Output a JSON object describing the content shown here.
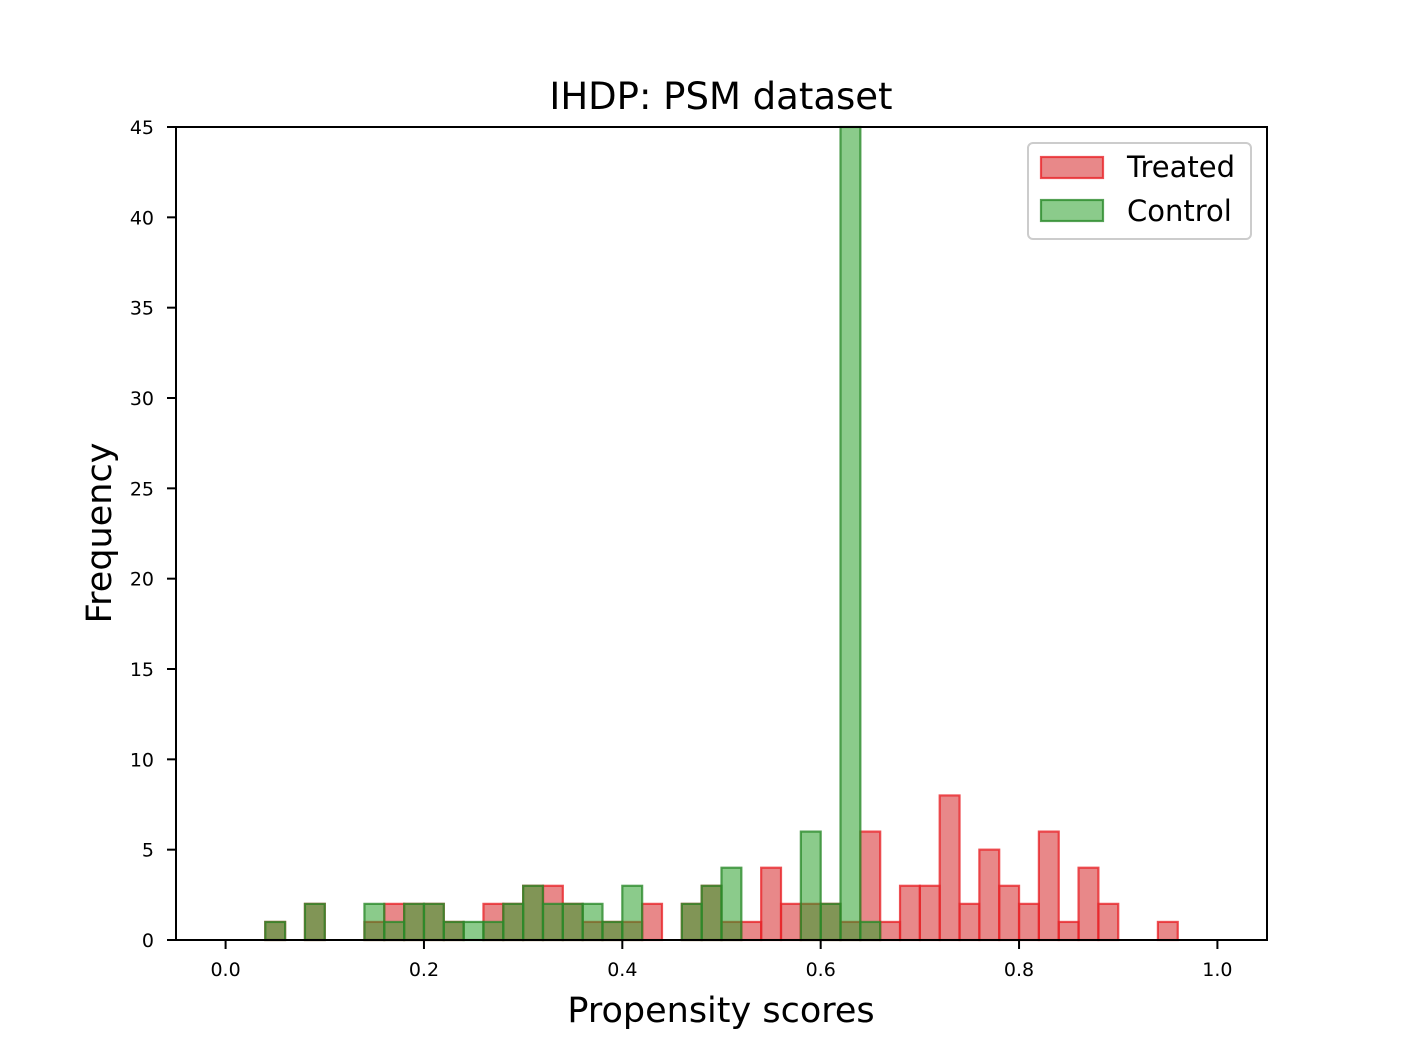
{
  "chart_data": {
    "type": "bar",
    "subtype": "histogram-overlay",
    "title": "IHDP: PSM dataset",
    "xlabel": "Propensity scores",
    "ylabel": "Frequency",
    "xlim": [
      -0.05,
      1.05
    ],
    "ylim": [
      0,
      45
    ],
    "xticks": [
      "0.0",
      "0.2",
      "0.4",
      "0.6",
      "0.8",
      "1.0"
    ],
    "yticks": [
      "0",
      "5",
      "10",
      "15",
      "20",
      "25",
      "30",
      "35",
      "40",
      "45"
    ],
    "bin_width": 0.02,
    "legend_position": "top-right",
    "series": [
      {
        "name": "Treated",
        "fill": "#d62728",
        "edge": "#e8262b",
        "bins": [
          {
            "x": 0.04,
            "count": 1
          },
          {
            "x": 0.08,
            "count": 2
          },
          {
            "x": 0.14,
            "count": 1
          },
          {
            "x": 0.16,
            "count": 2
          },
          {
            "x": 0.18,
            "count": 2
          },
          {
            "x": 0.2,
            "count": 2
          },
          {
            "x": 0.22,
            "count": 1
          },
          {
            "x": 0.26,
            "count": 2
          },
          {
            "x": 0.28,
            "count": 2
          },
          {
            "x": 0.3,
            "count": 3
          },
          {
            "x": 0.32,
            "count": 3
          },
          {
            "x": 0.34,
            "count": 2
          },
          {
            "x": 0.36,
            "count": 1
          },
          {
            "x": 0.38,
            "count": 1
          },
          {
            "x": 0.4,
            "count": 1
          },
          {
            "x": 0.42,
            "count": 2
          },
          {
            "x": 0.46,
            "count": 2
          },
          {
            "x": 0.48,
            "count": 3
          },
          {
            "x": 0.5,
            "count": 1
          },
          {
            "x": 0.52,
            "count": 1
          },
          {
            "x": 0.54,
            "count": 4
          },
          {
            "x": 0.56,
            "count": 2
          },
          {
            "x": 0.58,
            "count": 2
          },
          {
            "x": 0.6,
            "count": 2
          },
          {
            "x": 0.62,
            "count": 1
          },
          {
            "x": 0.64,
            "count": 6
          },
          {
            "x": 0.66,
            "count": 1
          },
          {
            "x": 0.68,
            "count": 3
          },
          {
            "x": 0.7,
            "count": 3
          },
          {
            "x": 0.72,
            "count": 8
          },
          {
            "x": 0.74,
            "count": 2
          },
          {
            "x": 0.76,
            "count": 5
          },
          {
            "x": 0.78,
            "count": 3
          },
          {
            "x": 0.8,
            "count": 2
          },
          {
            "x": 0.82,
            "count": 6
          },
          {
            "x": 0.84,
            "count": 1
          },
          {
            "x": 0.86,
            "count": 4
          },
          {
            "x": 0.88,
            "count": 2
          },
          {
            "x": 0.94,
            "count": 1
          }
        ]
      },
      {
        "name": "Control",
        "fill": "#2ca02c",
        "edge": "#2b8a2b",
        "bins": [
          {
            "x": 0.04,
            "count": 1
          },
          {
            "x": 0.08,
            "count": 2
          },
          {
            "x": 0.14,
            "count": 2
          },
          {
            "x": 0.16,
            "count": 1
          },
          {
            "x": 0.18,
            "count": 2
          },
          {
            "x": 0.2,
            "count": 2
          },
          {
            "x": 0.22,
            "count": 1
          },
          {
            "x": 0.24,
            "count": 1
          },
          {
            "x": 0.26,
            "count": 1
          },
          {
            "x": 0.28,
            "count": 2
          },
          {
            "x": 0.3,
            "count": 3
          },
          {
            "x": 0.32,
            "count": 2
          },
          {
            "x": 0.34,
            "count": 2
          },
          {
            "x": 0.36,
            "count": 2
          },
          {
            "x": 0.38,
            "count": 1
          },
          {
            "x": 0.4,
            "count": 3
          },
          {
            "x": 0.46,
            "count": 2
          },
          {
            "x": 0.48,
            "count": 3
          },
          {
            "x": 0.5,
            "count": 4
          },
          {
            "x": 0.58,
            "count": 6
          },
          {
            "x": 0.6,
            "count": 2
          },
          {
            "x": 0.62,
            "count": 45
          },
          {
            "x": 0.64,
            "count": 1
          }
        ]
      }
    ]
  }
}
